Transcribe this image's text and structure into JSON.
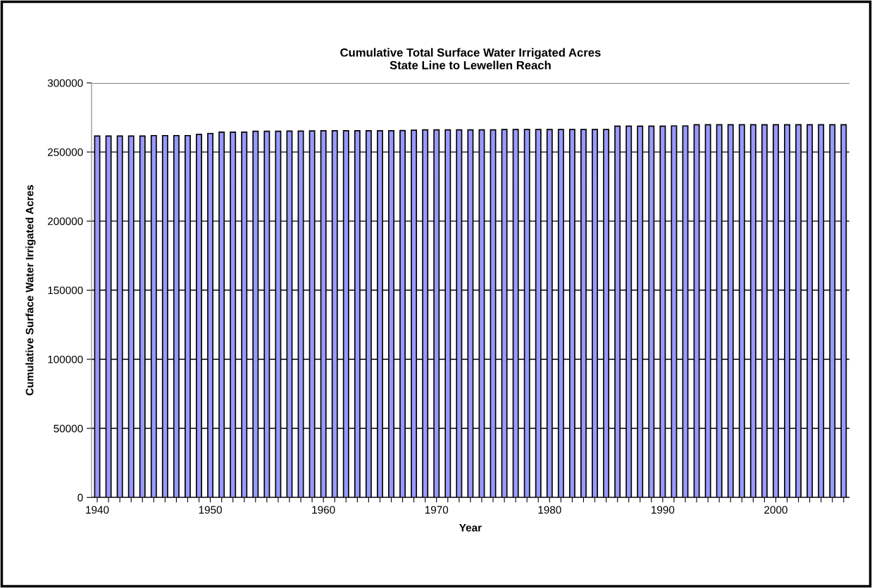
{
  "chart_data": {
    "type": "bar",
    "title": "Cumulative Total Surface Water Irrigated Acres\nState Line to Lewellen Reach",
    "xlabel": "Year",
    "ylabel": "Cumulative Surface Water Irrigated Acres",
    "categories": [
      "1940",
      null,
      null,
      null,
      null,
      null,
      null,
      null,
      null,
      null,
      "1950",
      null,
      null,
      null,
      null,
      null,
      null,
      null,
      null,
      null,
      "1960",
      null,
      null,
      null,
      null,
      null,
      null,
      null,
      null,
      null,
      "1970",
      null,
      null,
      null,
      null,
      null,
      null,
      null,
      null,
      null,
      "1980",
      null,
      null,
      null,
      null,
      null,
      null,
      null,
      null,
      null,
      "1990",
      null,
      null,
      null,
      null,
      null,
      null,
      null,
      null,
      null,
      "2000",
      null,
      null,
      null,
      null,
      null,
      null
    ],
    "values": [
      261600,
      261600,
      261600,
      261600,
      261600,
      261900,
      261900,
      261900,
      261900,
      262700,
      263400,
      264400,
      264400,
      264400,
      265000,
      265000,
      265000,
      265100,
      265100,
      265300,
      265400,
      265400,
      265400,
      265400,
      265400,
      265400,
      265400,
      265500,
      265800,
      266000,
      266000,
      266000,
      266000,
      266000,
      266000,
      266000,
      266300,
      266300,
      266300,
      266300,
      266300,
      266300,
      266300,
      266300,
      266300,
      266300,
      268700,
      268700,
      268700,
      268700,
      268700,
      268900,
      268900,
      269700,
      269700,
      269700,
      269700,
      269700,
      269700,
      269700,
      269700,
      269700,
      269700,
      269700,
      269700,
      269700,
      269700
    ],
    "color": "#9999ff",
    "ylim": [
      0,
      300000
    ],
    "yticks": [
      0,
      50000,
      100000,
      150000,
      200000,
      250000,
      300000
    ],
    "grid": "y",
    "legend": false
  }
}
